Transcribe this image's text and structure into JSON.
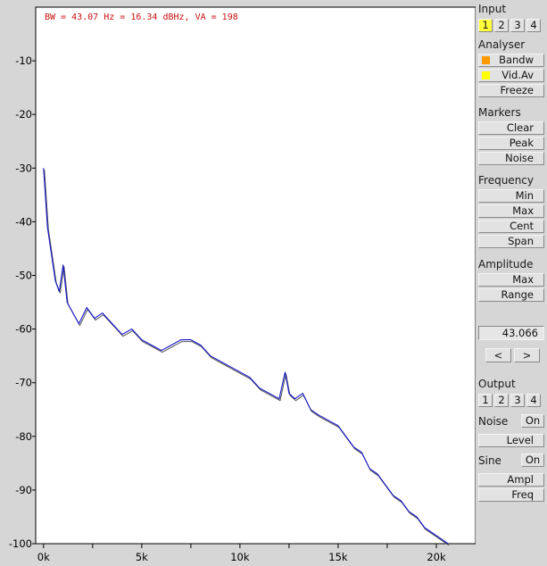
{
  "chart_data": {
    "type": "line",
    "title": "BW = 43.07 Hz = 16.34 dBHz, VA = 198",
    "xlabel": "",
    "ylabel": "",
    "xlim": [
      -400,
      22000
    ],
    "ylim": [
      -100,
      0
    ],
    "x_ticks": [
      "0k",
      "5k",
      "10k",
      "15k",
      "20k"
    ],
    "x_tick_values": [
      0,
      5000,
      10000,
      15000,
      20000
    ],
    "y_ticks": [
      "-10",
      "-20",
      "-30",
      "-40",
      "-50",
      "-60",
      "-70",
      "-80",
      "-90",
      "-100"
    ],
    "y_tick_values": [
      -10,
      -20,
      -30,
      -40,
      -50,
      -60,
      -70,
      -80,
      -90,
      -100
    ],
    "grid": false,
    "series": [
      {
        "color": "#1414c8",
        "x": [
          0,
          200,
          400,
          600,
          800,
          1000,
          1200,
          1500,
          1800,
          2200,
          2600,
          3000,
          3500,
          4000,
          4500,
          5000,
          5500,
          6000,
          6500,
          7000,
          7500,
          8000,
          8500,
          9000,
          9500,
          10000,
          10500,
          11000,
          11500,
          12000,
          12300,
          12500,
          12800,
          13200,
          13600,
          14000,
          14500,
          15000,
          15400,
          15800,
          16200,
          16600,
          17000,
          17400,
          17800,
          18200,
          18600,
          19000,
          19400,
          19800,
          20200,
          20600
        ],
        "y": [
          -30,
          -41,
          -46,
          -51,
          -53,
          -48,
          -55,
          -57,
          -59,
          -56,
          -58,
          -57,
          -59,
          -61,
          -60,
          -62,
          -63,
          -64,
          -63,
          -62,
          -62,
          -63,
          -65,
          -66,
          -67,
          -68,
          -69,
          -71,
          -72,
          -73,
          -68,
          -72,
          -73,
          -72,
          -75,
          -76,
          -77,
          -78,
          -80,
          -82,
          -83,
          -86,
          -87,
          -89,
          -91,
          -92,
          -94,
          -95,
          -97,
          -98,
          -99,
          -100
        ]
      }
    ]
  },
  "panel": {
    "input_label": "Input",
    "input_channels": [
      "1",
      "2",
      "3",
      "4"
    ],
    "analyser_label": "Analyser",
    "bandw": "Bandw",
    "vidav": "Vid.Av",
    "freeze": "Freeze",
    "markers_label": "Markers",
    "clear": "Clear",
    "peak": "Peak",
    "noise": "Noise",
    "frequency_label": "Frequency",
    "min": "Min",
    "freq_max": "Max",
    "cent": "Cent",
    "span": "Span",
    "amplitude_label": "Amplitude",
    "amp_max": "Max",
    "range": "Range",
    "value": "43.066",
    "left_arrow": "<",
    "right_arrow": ">",
    "output_label": "Output",
    "output_channels": [
      "1",
      "2",
      "3",
      "4"
    ],
    "noise_label": "Noise",
    "noise_on": "On",
    "level": "Level",
    "sine_label": "Sine",
    "sine_on": "On",
    "ampl": "Ampl",
    "freq": "Freq",
    "colors": {
      "bandw_indicator": "#ff9900",
      "vidav_indicator": "#ffff00",
      "active_channel": "#ffff3a"
    }
  }
}
